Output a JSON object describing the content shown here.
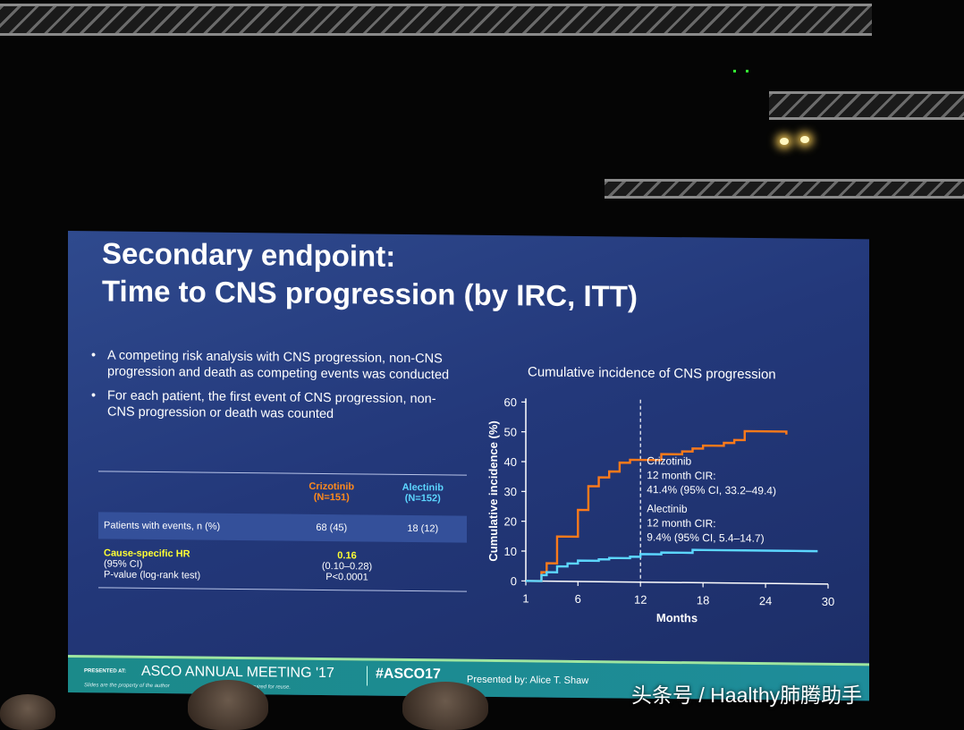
{
  "slide": {
    "title_line1": "Secondary endpoint:",
    "title_line2": "Time to CNS progression (by IRC, ITT)",
    "bullets": [
      "A competing risk analysis with CNS progression, non-CNS progression and death as competing events was conducted",
      "For each patient, the first event of CNS progression, non-CNS progression or death was counted"
    ]
  },
  "table": {
    "col_crizotinib": "Crizotinib",
    "col_crizotinib_n": "(N=151)",
    "col_alectinib": "Alectinib",
    "col_alectinib_n": "(N=152)",
    "row_events_label": "Patients with events, n (%)",
    "row_events_crizotinib": "68 (45)",
    "row_events_alectinib": "18 (12)",
    "hr_label": "Cause-specific HR",
    "ci_label": "(95% CI)",
    "p_label": "P-value (log-rank test)",
    "hr_value": "0.16",
    "ci_value": "(0.10–0.28)",
    "p_value": "P<0.0001"
  },
  "chart_data": {
    "type": "line",
    "title": "Cumulative incidence of CNS progression",
    "xlabel": "Months",
    "ylabel": "Cumulative incidence (%)",
    "xlim": [
      1,
      30
    ],
    "ylim": [
      0,
      60
    ],
    "xticks": [
      1,
      6,
      12,
      18,
      24,
      30
    ],
    "yticks": [
      0,
      10,
      20,
      30,
      40,
      50,
      60
    ],
    "reference_line_x": 12,
    "series": [
      {
        "name": "Crizotinib",
        "color": "#ff7a1a",
        "x": [
          1,
          2.5,
          3,
          4,
          5,
          6,
          7,
          8,
          9,
          10,
          11,
          12,
          14,
          16,
          17,
          18,
          19,
          20,
          21,
          22,
          24,
          26
        ],
        "y": [
          0,
          3,
          6,
          15,
          15,
          24,
          32,
          35,
          37,
          40,
          41,
          41,
          43,
          44,
          45,
          46,
          46,
          47,
          48,
          51,
          51,
          50
        ],
        "annotation": [
          "Crizotinib",
          "12 month CIR:",
          "41.4% (95% CI, 33.2–49.4)"
        ]
      },
      {
        "name": "Alectinib",
        "color": "#5cd6ff",
        "x": [
          1,
          2.5,
          3,
          4,
          5,
          6,
          7,
          8,
          9,
          10,
          11,
          12,
          14,
          16,
          17,
          18,
          20,
          22,
          24,
          26,
          28,
          29
        ],
        "y": [
          0,
          2,
          3,
          5,
          6,
          7,
          7,
          7.5,
          8,
          8,
          8.5,
          9.4,
          10,
          10,
          11,
          11,
          11,
          11,
          11,
          11,
          11,
          11
        ],
        "annotation": [
          "Alectinib",
          "12 month CIR:",
          "9.4% (95% CI, 5.4–14.7)"
        ]
      }
    ]
  },
  "footer": {
    "presented_at": "PRESENTED AT:",
    "meeting": "ASCO ANNUAL MEETING '17",
    "hashtag": "#ASCO17",
    "presented_by": "Presented by:  Alice T. Shaw",
    "fineprint": "Slides are the property of the author",
    "fineprint2": "required for reuse."
  },
  "watermark": "头条号 / Haalthy肺腾助手"
}
